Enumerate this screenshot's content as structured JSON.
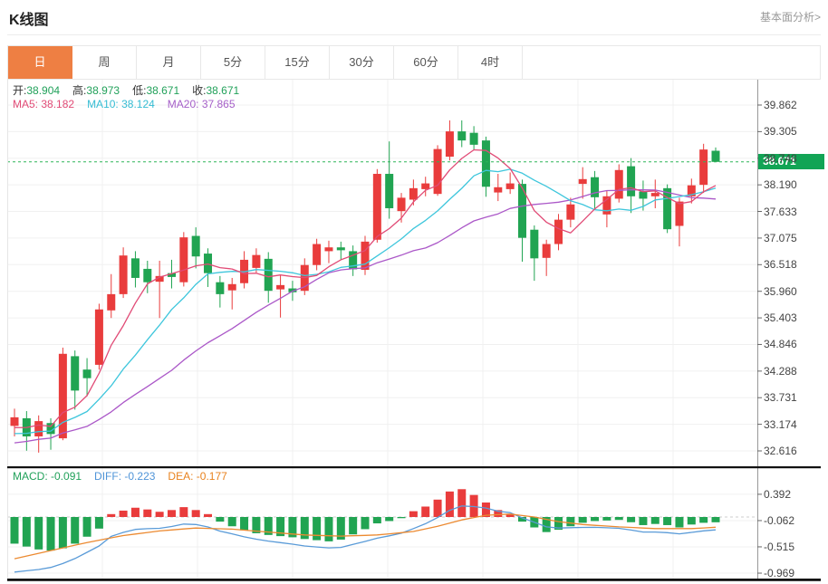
{
  "header": {
    "title": "K线图",
    "link": "基本面分析>"
  },
  "tabs": {
    "items": [
      {
        "label": "日",
        "active": true
      },
      {
        "label": "周",
        "active": false
      },
      {
        "label": "月",
        "active": false
      },
      {
        "label": "5分",
        "active": false
      },
      {
        "label": "15分",
        "active": false
      },
      {
        "label": "30分",
        "active": false
      },
      {
        "label": "60分",
        "active": false
      },
      {
        "label": "4时",
        "active": false
      }
    ]
  },
  "legend": {
    "open_label": "开:",
    "open": "38.904",
    "high_label": "高:",
    "high": "38.973",
    "low_label": "低:",
    "low": "38.671",
    "close_label": "收:",
    "close": "38.671",
    "ma5_label": "MA5:",
    "ma5": "38.182",
    "ma10_label": "MA10:",
    "ma10": "38.124",
    "ma20_label": "MA20:",
    "ma20": "37.865"
  },
  "macd_legend": {
    "macd_label": "MACD:",
    "macd": "-0.091",
    "diff_label": "DIFF:",
    "diff": "-0.223",
    "dea_label": "DEA:",
    "dea": "-0.177"
  },
  "price_tag": "38.671",
  "colors": {
    "up": "#e93c3c",
    "down": "#21a452",
    "ma5": "#e14b76",
    "ma10": "#3ec6dc",
    "ma20": "#ab58c8",
    "diff": "#5a9bd8",
    "dea": "#ec8a31",
    "tag_green": "#12a455",
    "dashed_line": "#2eb558",
    "grid": "#f0f0f0",
    "axis": "#999999",
    "separator": "#111111",
    "tab_active": "#ee7f43"
  },
  "chart_data": {
    "type": "candlestick+macd",
    "title": "K线图 日线",
    "legend_position": "top-left",
    "grid": true,
    "price_axis_ticks": [
      39.862,
      39.305,
      38.748,
      38.19,
      37.633,
      37.075,
      36.518,
      35.96,
      35.403,
      34.846,
      34.288,
      33.731,
      33.174,
      32.616
    ],
    "price_axis_range": [
      32.616,
      39.862
    ],
    "macd_axis_ticks": [
      0.392,
      -0.062,
      -0.515,
      -0.969
    ],
    "current_price": 38.671,
    "last_candle": {
      "open": 38.904,
      "high": 38.973,
      "low": 38.671,
      "close": 38.671
    },
    "ma_values": {
      "ma5": 38.182,
      "ma10": 38.124,
      "ma20": 37.865
    },
    "macd_values": {
      "macd": -0.091,
      "diff": -0.223,
      "dea": -0.177
    },
    "candles_ochl": [
      [
        33.14,
        33.32,
        33.5,
        32.92
      ],
      [
        33.3,
        32.92,
        33.45,
        32.62
      ],
      [
        32.92,
        33.24,
        33.36,
        32.58
      ],
      [
        33.2,
        32.97,
        33.3,
        32.64
      ],
      [
        32.88,
        34.65,
        34.78,
        32.84
      ],
      [
        34.6,
        33.88,
        34.72,
        33.48
      ],
      [
        34.32,
        34.14,
        34.56,
        33.76
      ],
      [
        34.42,
        35.58,
        35.7,
        34.32
      ],
      [
        35.56,
        35.9,
        36.32,
        35.4
      ],
      [
        35.9,
        36.71,
        36.88,
        35.82
      ],
      [
        36.65,
        36.24,
        36.8,
        36.04
      ],
      [
        36.43,
        36.15,
        36.6,
        35.92
      ],
      [
        36.16,
        36.28,
        36.6,
        35.4
      ],
      [
        36.34,
        36.26,
        36.62,
        36.02
      ],
      [
        36.15,
        37.09,
        37.2,
        36.06
      ],
      [
        37.12,
        36.69,
        37.3,
        36.44
      ],
      [
        36.75,
        36.34,
        36.86,
        36.05
      ],
      [
        36.15,
        35.9,
        36.28,
        35.62
      ],
      [
        35.98,
        36.11,
        36.24,
        35.58
      ],
      [
        36.13,
        36.62,
        36.8,
        36.02
      ],
      [
        36.45,
        36.72,
        36.86,
        36.35
      ],
      [
        36.64,
        35.97,
        36.78,
        35.72
      ],
      [
        36.0,
        36.09,
        36.3,
        35.41
      ],
      [
        36.02,
        35.94,
        36.18,
        35.76
      ],
      [
        35.97,
        36.51,
        36.65,
        35.88
      ],
      [
        36.51,
        36.95,
        37.06,
        36.4
      ],
      [
        36.8,
        36.88,
        37.02,
        36.55
      ],
      [
        36.88,
        36.82,
        37.0,
        36.62
      ],
      [
        36.8,
        36.42,
        36.92,
        36.28
      ],
      [
        36.41,
        37.0,
        37.12,
        36.3
      ],
      [
        37.04,
        38.42,
        38.52,
        36.98
      ],
      [
        38.42,
        37.7,
        39.1,
        37.48
      ],
      [
        37.64,
        37.92,
        38.02,
        37.4
      ],
      [
        37.88,
        38.12,
        38.3,
        37.76
      ],
      [
        38.1,
        38.22,
        38.36,
        37.95
      ],
      [
        38.0,
        38.94,
        39.02,
        37.96
      ],
      [
        38.78,
        39.31,
        39.54,
        38.7
      ],
      [
        39.31,
        39.12,
        39.54,
        38.98
      ],
      [
        39.28,
        39.03,
        39.42,
        38.92
      ],
      [
        39.12,
        38.15,
        39.2,
        37.94
      ],
      [
        38.03,
        38.14,
        38.42,
        37.85
      ],
      [
        38.1,
        38.22,
        38.45,
        38.0
      ],
      [
        38.21,
        37.08,
        38.3,
        36.58
      ],
      [
        37.25,
        36.65,
        37.34,
        36.18
      ],
      [
        36.66,
        36.95,
        37.04,
        36.28
      ],
      [
        36.95,
        37.46,
        37.58,
        36.82
      ],
      [
        37.46,
        37.78,
        37.92,
        37.3
      ],
      [
        38.21,
        38.31,
        38.56,
        37.9
      ],
      [
        38.35,
        37.93,
        38.48,
        37.68
      ],
      [
        37.57,
        37.95,
        38.06,
        37.3
      ],
      [
        37.9,
        38.5,
        38.62,
        37.82
      ],
      [
        38.58,
        37.95,
        38.75,
        37.6
      ],
      [
        38.05,
        37.9,
        38.28,
        37.65
      ],
      [
        37.95,
        38.02,
        38.3,
        37.7
      ],
      [
        38.12,
        37.26,
        38.2,
        37.18
      ],
      [
        37.33,
        37.84,
        37.92,
        36.9
      ],
      [
        37.95,
        38.18,
        38.32,
        37.8
      ],
      [
        38.19,
        38.93,
        39.05,
        38.02
      ],
      [
        38.904,
        38.671,
        38.973,
        38.671
      ]
    ],
    "ma_seed_closes": [
      32.2,
      32.3,
      32.38,
      32.45,
      32.52,
      32.58,
      32.64,
      32.7,
      32.74,
      32.78,
      32.82,
      32.86,
      32.88,
      32.86,
      32.82,
      32.84,
      32.9,
      33.0,
      33.1,
      33.2
    ],
    "macd_hist": [
      -0.46,
      -0.51,
      -0.56,
      -0.58,
      -0.54,
      -0.46,
      -0.34,
      -0.2,
      0.05,
      0.11,
      0.16,
      0.13,
      0.09,
      0.12,
      0.17,
      0.12,
      0.05,
      -0.08,
      -0.16,
      -0.23,
      -0.28,
      -0.31,
      -0.33,
      -0.35,
      -0.38,
      -0.4,
      -0.42,
      -0.39,
      -0.3,
      -0.21,
      -0.11,
      -0.07,
      -0.02,
      0.1,
      0.18,
      0.3,
      0.44,
      0.48,
      0.38,
      0.25,
      0.12,
      0.05,
      -0.08,
      -0.18,
      -0.26,
      -0.22,
      -0.16,
      -0.1,
      -0.07,
      -0.06,
      -0.05,
      -0.09,
      -0.14,
      -0.12,
      -0.14,
      -0.18,
      -0.13,
      -0.1,
      -0.091
    ],
    "dea_points": [
      [
        0,
        -0.72
      ],
      [
        3,
        -0.58
      ],
      [
        6,
        -0.44
      ],
      [
        9,
        -0.32
      ],
      [
        12,
        -0.24
      ],
      [
        15,
        -0.19
      ],
      [
        18,
        -0.21
      ],
      [
        21,
        -0.26
      ],
      [
        24,
        -0.31
      ],
      [
        27,
        -0.33
      ],
      [
        30,
        -0.31
      ],
      [
        33,
        -0.25
      ],
      [
        35,
        -0.16
      ],
      [
        37,
        -0.05
      ],
      [
        39,
        0.03
      ],
      [
        41,
        0.05
      ],
      [
        43,
        0.0
      ],
      [
        45,
        -0.08
      ],
      [
        47,
        -0.13
      ],
      [
        50,
        -0.17
      ],
      [
        53,
        -0.2
      ],
      [
        56,
        -0.2
      ],
      [
        58,
        -0.177
      ]
    ]
  }
}
